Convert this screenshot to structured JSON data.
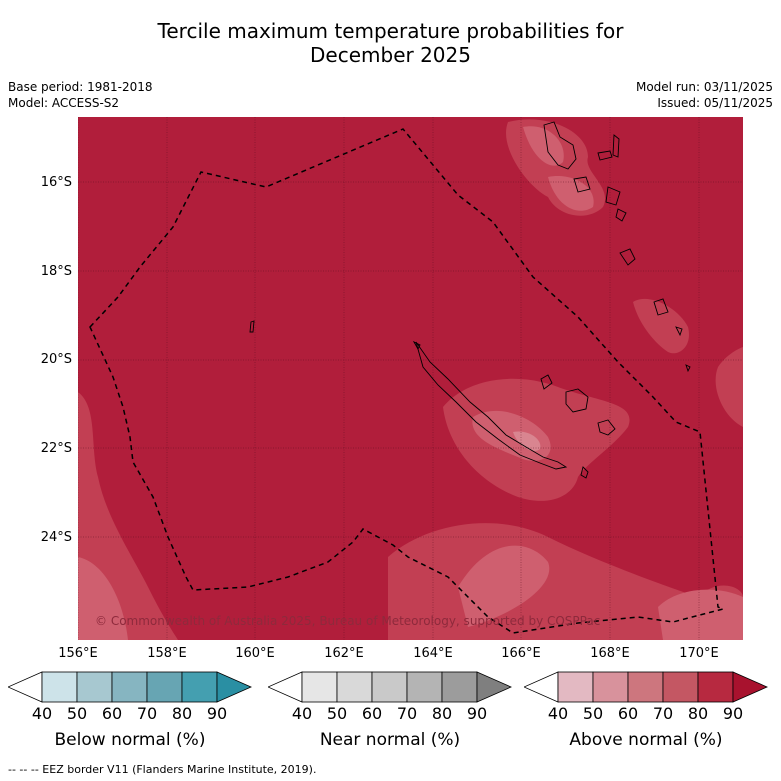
{
  "title_line1": "Tercile maximum temperature probabilities for",
  "title_line2": "December 2025",
  "base_period": "Base period: 1981-2018",
  "model": "Model: ACCESS-S2",
  "model_run": "Model run: 03/11/2025",
  "issued": "Issued: 05/11/2025",
  "lat_labels": [
    "16°S",
    "18°S",
    "20°S",
    "22°S",
    "24°S"
  ],
  "lon_labels": [
    "156°E",
    "158°E",
    "160°E",
    "162°E",
    "164°E",
    "166°E",
    "168°E",
    "170°E"
  ],
  "copyright": "© Commonwealth of Australia 2025, Bureau of Meteorology, supported by COSPPac",
  "colorbars": [
    {
      "label": "Below normal (%)",
      "colors": [
        "#ffffff",
        "#cde3e9",
        "#a7c8d0",
        "#86b5c1",
        "#67a5b3",
        "#449fb0",
        "#2a8fa3"
      ]
    },
    {
      "label": "Near normal (%)",
      "colors": [
        "#ffffff",
        "#e6e6e6",
        "#d9d9d9",
        "#c9c9c9",
        "#b4b4b4",
        "#9c9c9c",
        "#7f7f7f"
      ]
    },
    {
      "label": "Above normal (%)",
      "colors": [
        "#ffffff",
        "#e3b9c2",
        "#d8929c",
        "#cd767e",
        "#c45763",
        "#b72940",
        "#a8122e"
      ]
    }
  ],
  "tick_values": [
    "40",
    "50",
    "60",
    "70",
    "80",
    "90"
  ],
  "footer": "--  --  -- EEZ border V11 (Flanders Marine Institute, 2019).",
  "map_colors": {
    "base": "#b11e3b",
    "light1": "#c23f53",
    "light2": "#cf5f6f",
    "light3": "#d98590"
  }
}
